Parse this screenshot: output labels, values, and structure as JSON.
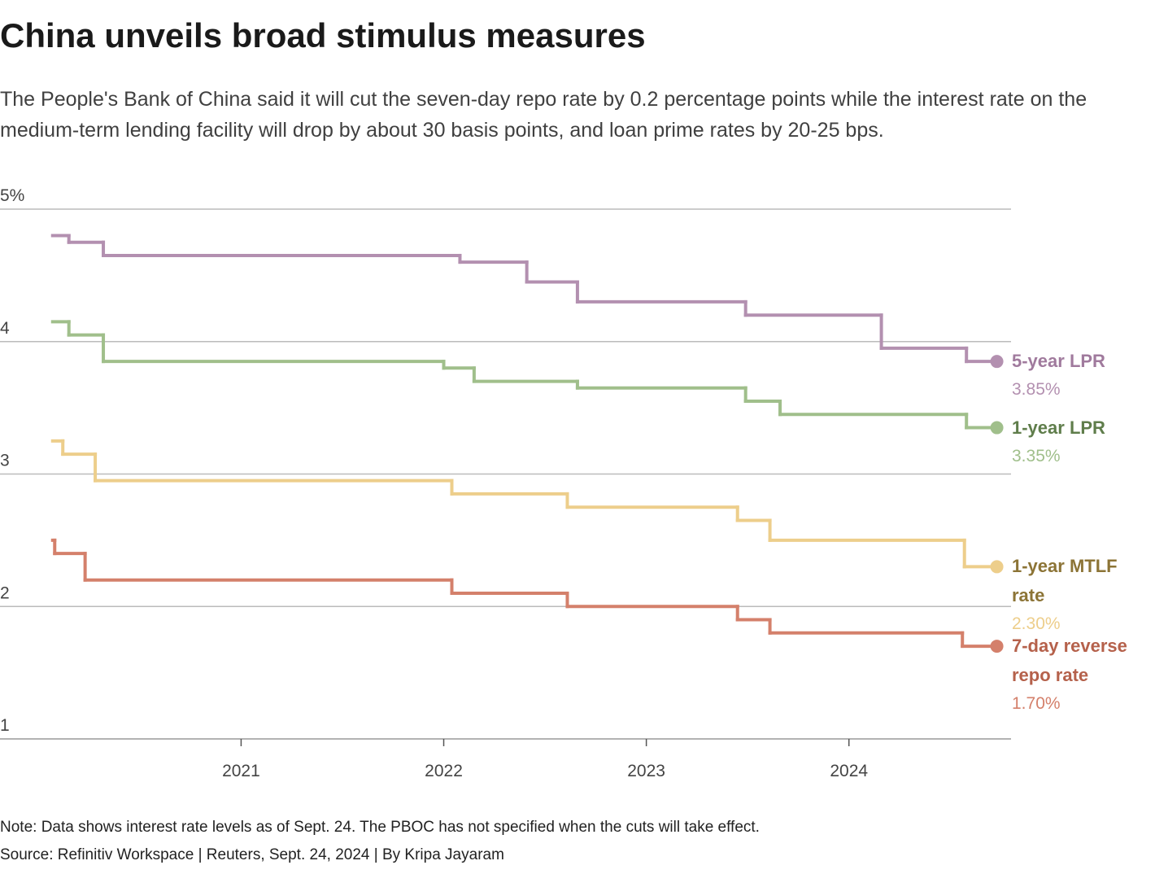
{
  "chart_data": {
    "type": "step",
    "title": "China unveils broad stimulus measures",
    "subtitle": "The People's Bank of China said it will cut the seven-day repo rate by 0.2 percentage points while the interest rate on the medium-term lending facility will drop by about 30 basis points, and loan prime rates by 20-25 bps.",
    "note": "Note: Data shows interest rate levels as of Sept. 24. The PBOC has not specified when the cuts will take effect.",
    "source": "Source: Refinitiv Workspace | Reuters, Sept. 24, 2024 | By Kripa Jayaram",
    "xlim": [
      2019.81,
      2024.8
    ],
    "xticks": [
      2021,
      2022,
      2023,
      2024
    ],
    "ylim": [
      1,
      5
    ],
    "yticks": [
      {
        "value": 5,
        "label": "5%"
      },
      4,
      3,
      2,
      1
    ],
    "grid": true,
    "series": [
      {
        "name": "5-year LPR",
        "color": "#b390b0",
        "label_color": "#a07a9d",
        "end_label": "3.85%",
        "x": [
          2020.07,
          2020.15,
          2020.32,
          2022.08,
          2022.41,
          2022.66,
          2023.49,
          2024.16,
          2024.58,
          2024.73
        ],
        "values": [
          4.8,
          4.75,
          4.65,
          4.6,
          4.45,
          4.3,
          4.2,
          3.95,
          3.85,
          3.85
        ]
      },
      {
        "name": "1-year LPR",
        "color": "#a0bf8b",
        "label_color": "#5f7d4b",
        "end_label": "3.35%",
        "x": [
          2020.07,
          2020.15,
          2020.32,
          2022.0,
          2022.15,
          2022.66,
          2023.49,
          2023.66,
          2024.58,
          2024.73
        ],
        "values": [
          4.15,
          4.05,
          3.85,
          3.8,
          3.7,
          3.65,
          3.55,
          3.45,
          3.35,
          3.35
        ]
      },
      {
        "name": "1-year MTLF rate",
        "color": "#edce8b",
        "label_color": "#8c7436",
        "end_label": "2.30%",
        "x": [
          2020.07,
          2020.12,
          2020.28,
          2022.04,
          2022.61,
          2023.45,
          2023.61,
          2024.57,
          2024.73
        ],
        "values": [
          3.25,
          3.15,
          2.95,
          2.85,
          2.75,
          2.65,
          2.5,
          2.3,
          2.3
        ]
      },
      {
        "name": "7-day reverse repo rate",
        "color": "#d4806b",
        "label_color": "#b5614b",
        "end_label": "1.70%",
        "x": [
          2020.07,
          2020.08,
          2020.23,
          2022.04,
          2022.61,
          2023.45,
          2023.61,
          2024.56,
          2024.73
        ],
        "values": [
          2.5,
          2.4,
          2.2,
          2.1,
          2.0,
          1.9,
          1.8,
          1.7,
          1.7
        ]
      }
    ]
  }
}
